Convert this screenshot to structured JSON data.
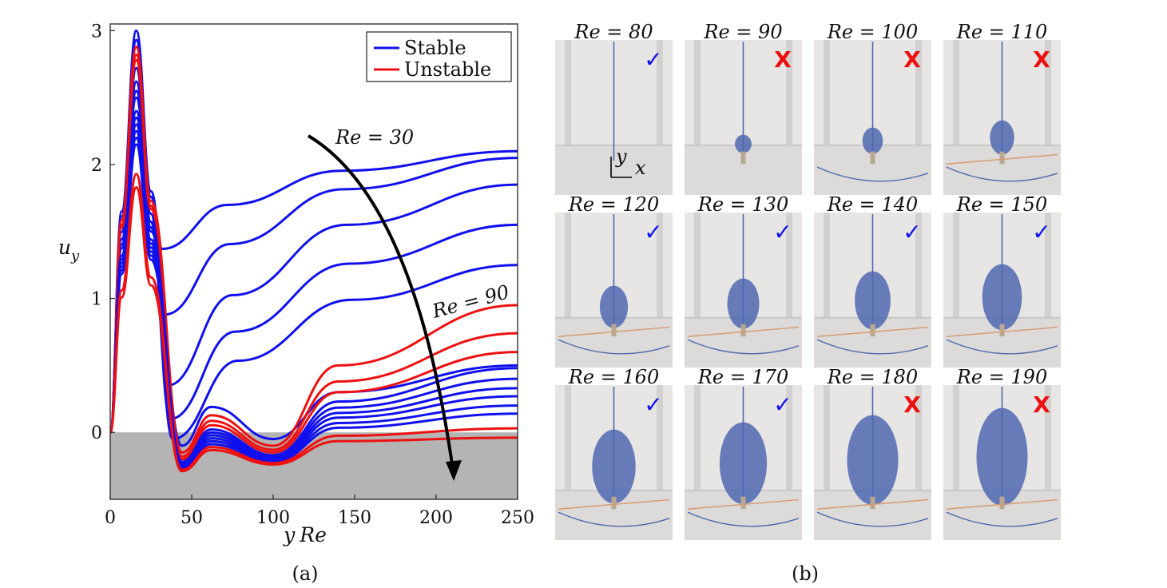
{
  "chart_data": [
    {
      "panel": "(a)",
      "type": "line",
      "xlabel": "yRe",
      "ylabel": "u_y",
      "xlim": [
        0,
        250
      ],
      "ylim": [
        -0.5,
        3.05
      ],
      "x_ticks": [
        "0",
        "50",
        "100",
        "150",
        "200",
        "250"
      ],
      "y_ticks": [
        "0",
        "1",
        "2",
        "3"
      ],
      "negative_region_shaded": true,
      "legend": {
        "placement": "top-right",
        "entries": [
          {
            "label": "Stable",
            "color": "#1010ee"
          },
          {
            "label": "Unstable",
            "color": "#ee1010"
          }
        ]
      },
      "annotations": [
        {
          "text": "Re = 30",
          "target": "uppermost curve"
        },
        {
          "text": "Re = 90",
          "target": "first red curve"
        }
      ],
      "arrow": "increasing Re (top curve to bottom curve)",
      "series": [
        {
          "Re": 30,
          "stability": "stable",
          "peak": 3.0,
          "min": 1.37,
          "end": 2.1
        },
        {
          "Re": 40,
          "stability": "stable",
          "peak": 2.93,
          "min": 0.88,
          "end": 2.05
        },
        {
          "Re": 50,
          "stability": "stable",
          "peak": 2.72,
          "min": 0.35,
          "end": 1.85
        },
        {
          "Re": 60,
          "stability": "stable",
          "peak": 2.62,
          "min": 0.1,
          "end": 1.55
        },
        {
          "Re": 70,
          "stability": "stable",
          "peak": 2.55,
          "min": -0.05,
          "end": 1.25
        },
        {
          "Re": 80,
          "stability": "stable",
          "peak": 2.5,
          "min": -0.1,
          "end": 0.5
        },
        {
          "Re": 90,
          "stability": "unstable",
          "peak": 2.88,
          "min": -0.15,
          "end": 0.95
        },
        {
          "Re": 100,
          "stability": "unstable",
          "peak": 2.82,
          "min": -0.18,
          "end": 0.74
        },
        {
          "Re": 110,
          "stability": "unstable",
          "peak": 2.78,
          "min": -0.2,
          "end": 0.6
        },
        {
          "Re": 120,
          "stability": "stable",
          "peak": 2.4,
          "min": -0.22,
          "end": 0.48
        },
        {
          "Re": 130,
          "stability": "stable",
          "peak": 2.35,
          "min": -0.23,
          "end": 0.4
        },
        {
          "Re": 140,
          "stability": "stable",
          "peak": 2.3,
          "min": -0.24,
          "end": 0.33
        },
        {
          "Re": 150,
          "stability": "stable",
          "peak": 2.25,
          "min": -0.25,
          "end": 0.27
        },
        {
          "Re": 160,
          "stability": "stable",
          "peak": 2.2,
          "min": -0.26,
          "end": 0.2
        },
        {
          "Re": 170,
          "stability": "stable",
          "peak": 2.15,
          "min": -0.27,
          "end": 0.14
        },
        {
          "Re": 180,
          "stability": "unstable",
          "peak": 1.93,
          "min": -0.28,
          "end": 0.03
        },
        {
          "Re": 190,
          "stability": "unstable",
          "peak": 1.83,
          "min": -0.29,
          "end": -0.04
        }
      ]
    },
    {
      "panel": "(b)",
      "type": "image-grid",
      "axis_glyph": {
        "y": "y",
        "x": "x"
      },
      "cells": [
        {
          "label": "Re = 80",
          "status": "stable"
        },
        {
          "label": "Re = 90",
          "status": "unstable"
        },
        {
          "label": "Re = 100",
          "status": "unstable"
        },
        {
          "label": "Re = 110",
          "status": "unstable"
        },
        {
          "label": "Re = 120",
          "status": "stable"
        },
        {
          "label": "Re = 130",
          "status": "stable"
        },
        {
          "label": "Re = 140",
          "status": "stable"
        },
        {
          "label": "Re = 150",
          "status": "stable"
        },
        {
          "label": "Re = 160",
          "status": "stable"
        },
        {
          "label": "Re = 170",
          "status": "stable"
        },
        {
          "label": "Re = 180",
          "status": "unstable"
        },
        {
          "label": "Re = 190",
          "status": "unstable"
        }
      ],
      "marks": {
        "stable": "✓",
        "unstable": "X"
      },
      "colors": {
        "stable": "#1010ee",
        "unstable": "#ee1010",
        "jet": "#4f67b0",
        "panel_bg": "#e7e6e4"
      }
    }
  ],
  "captions": {
    "a": "(a)",
    "b": "(b)"
  }
}
